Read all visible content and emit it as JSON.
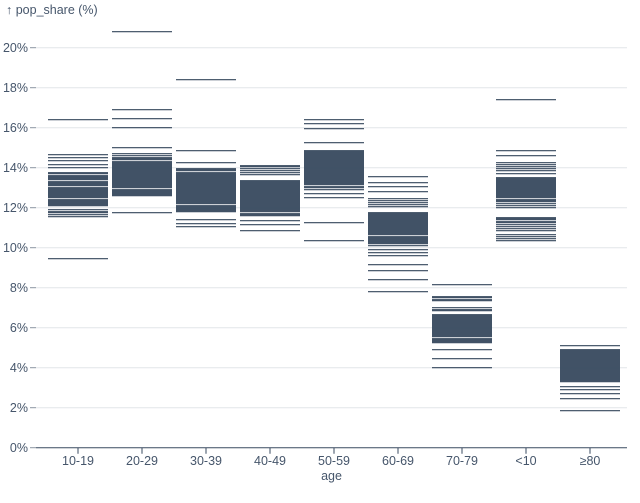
{
  "chart_data": {
    "type": "tick",
    "title": "",
    "y_axis_title": "↑ pop_share (%)",
    "x_axis_label": "age",
    "ylabel": "pop_share (%)",
    "xlabel": "age",
    "ylim": [
      0,
      21
    ],
    "y_ticks": [
      0,
      2,
      4,
      6,
      8,
      10,
      12,
      14,
      16,
      18,
      20
    ],
    "y_tick_suffix": "%",
    "grid": true,
    "legend_position": "none",
    "colors": {
      "tick": "#35475c",
      "grid": "#e2e5e9",
      "axis": "#3a4b60",
      "dash": "#8a94a1",
      "text": "#46566b"
    },
    "categories": [
      "10-19",
      "20-29",
      "30-39",
      "40-49",
      "50-59",
      "60-69",
      "70-79",
      "<10",
      "≥80"
    ],
    "series": [
      {
        "age": "10-19",
        "values": [
          16.4,
          14.65,
          14.5,
          14.35,
          14.15,
          14.0,
          13.75,
          13.7,
          13.6,
          13.55,
          13.5,
          13.45,
          13.4,
          13.3,
          13.25,
          13.2,
          13.15,
          13.1,
          13.0,
          12.95,
          12.9,
          12.85,
          12.8,
          12.75,
          12.7,
          12.65,
          12.6,
          12.55,
          12.5,
          12.4,
          12.35,
          12.3,
          12.25,
          12.2,
          12.15,
          12.1,
          11.9,
          11.8,
          11.75,
          11.65,
          11.55,
          9.45
        ]
      },
      {
        "age": "20-29",
        "values": [
          20.8,
          16.9,
          16.45,
          16.0,
          15.0,
          14.7,
          14.6,
          14.5,
          14.45,
          14.4,
          14.3,
          14.25,
          14.2,
          14.15,
          14.1,
          14.05,
          14.0,
          13.95,
          13.9,
          13.85,
          13.8,
          13.75,
          13.7,
          13.65,
          13.6,
          13.55,
          13.5,
          13.45,
          13.4,
          13.35,
          13.3,
          13.25,
          13.2,
          13.15,
          13.1,
          13.05,
          13.0,
          12.9,
          12.85,
          12.8,
          12.75,
          12.7,
          12.65,
          12.6,
          11.75
        ]
      },
      {
        "age": "30-39",
        "values": [
          18.4,
          14.85,
          14.25,
          13.95,
          13.9,
          13.85,
          13.75,
          13.7,
          13.65,
          13.6,
          13.55,
          13.5,
          13.45,
          13.4,
          13.35,
          13.3,
          13.25,
          13.2,
          13.15,
          13.1,
          13.05,
          13.0,
          12.95,
          12.9,
          12.85,
          12.8,
          12.75,
          12.7,
          12.65,
          12.6,
          12.55,
          12.5,
          12.45,
          12.4,
          12.35,
          12.3,
          12.25,
          12.2,
          12.1,
          12.05,
          12.0,
          11.95,
          11.9,
          11.85,
          11.8,
          11.4,
          11.2,
          11.05
        ]
      },
      {
        "age": "40-49",
        "values": [
          14.1,
          14.05,
          13.95,
          13.85,
          13.75,
          13.65,
          13.35,
          13.3,
          13.25,
          13.2,
          13.15,
          13.1,
          13.05,
          13.0,
          12.95,
          12.9,
          12.85,
          12.8,
          12.75,
          12.7,
          12.65,
          12.6,
          12.55,
          12.5,
          12.45,
          12.4,
          12.35,
          12.3,
          12.25,
          12.2,
          12.15,
          12.1,
          12.05,
          12.0,
          11.95,
          11.9,
          11.85,
          11.8,
          11.7,
          11.65,
          11.6,
          11.35,
          11.15,
          10.85
        ]
      },
      {
        "age": "50-59",
        "values": [
          16.4,
          16.2,
          15.95,
          15.25,
          14.85,
          14.8,
          14.75,
          14.7,
          14.65,
          14.6,
          14.55,
          14.5,
          14.45,
          14.4,
          14.35,
          14.3,
          14.25,
          14.2,
          14.15,
          14.1,
          14.05,
          14.0,
          13.95,
          13.9,
          13.85,
          13.8,
          13.75,
          13.7,
          13.65,
          13.6,
          13.55,
          13.5,
          13.45,
          13.4,
          13.35,
          13.3,
          13.25,
          13.2,
          13.15,
          13.05,
          13.0,
          12.9,
          12.7,
          12.5,
          11.25,
          10.35
        ]
      },
      {
        "age": "60-69",
        "values": [
          13.55,
          13.25,
          13.05,
          12.8,
          12.45,
          12.35,
          12.25,
          12.15,
          12.05,
          11.75,
          11.7,
          11.65,
          11.6,
          11.55,
          11.5,
          11.45,
          11.4,
          11.35,
          11.3,
          11.25,
          11.2,
          11.15,
          11.1,
          11.05,
          11.0,
          10.95,
          10.9,
          10.85,
          10.8,
          10.75,
          10.7,
          10.65,
          10.55,
          10.5,
          10.45,
          10.4,
          10.35,
          10.3,
          10.25,
          10.2,
          10.1,
          9.9,
          9.75,
          9.6,
          9.15,
          8.85,
          8.4,
          7.8
        ]
      },
      {
        "age": "70-79",
        "values": [
          8.15,
          7.55,
          7.5,
          7.4,
          7.35,
          7.0,
          6.9,
          6.85,
          6.65,
          6.6,
          6.55,
          6.5,
          6.45,
          6.4,
          6.35,
          6.3,
          6.25,
          6.2,
          6.15,
          6.1,
          6.05,
          6.0,
          5.95,
          5.9,
          5.85,
          5.8,
          5.75,
          5.7,
          5.65,
          5.6,
          5.55,
          5.45,
          5.4,
          5.35,
          5.3,
          5.25,
          4.9,
          4.45,
          4.0
        ]
      },
      {
        "age": "<10",
        "values": [
          17.4,
          14.85,
          14.6,
          14.25,
          14.15,
          14.05,
          13.95,
          13.85,
          13.7,
          13.5,
          13.45,
          13.4,
          13.35,
          13.3,
          13.25,
          13.2,
          13.15,
          13.1,
          13.05,
          13.0,
          12.95,
          12.9,
          12.85,
          12.8,
          12.75,
          12.7,
          12.65,
          12.6,
          12.55,
          12.5,
          12.4,
          12.35,
          12.3,
          12.2,
          12.1,
          12.0,
          11.5,
          11.45,
          11.4,
          11.3,
          11.25,
          11.15,
          11.05,
          10.95,
          10.85,
          10.65,
          10.55,
          10.45,
          10.35
        ]
      },
      {
        "age": "≥80",
        "values": [
          5.1,
          4.9,
          4.85,
          4.8,
          4.75,
          4.7,
          4.65,
          4.6,
          4.55,
          4.5,
          4.45,
          4.4,
          4.35,
          4.3,
          4.25,
          4.2,
          4.15,
          4.1,
          4.05,
          4.0,
          3.95,
          3.9,
          3.85,
          3.8,
          3.75,
          3.7,
          3.65,
          3.6,
          3.55,
          3.5,
          3.45,
          3.4,
          3.35,
          3.3,
          3.05,
          2.9,
          2.7,
          2.45,
          1.85
        ]
      }
    ]
  }
}
